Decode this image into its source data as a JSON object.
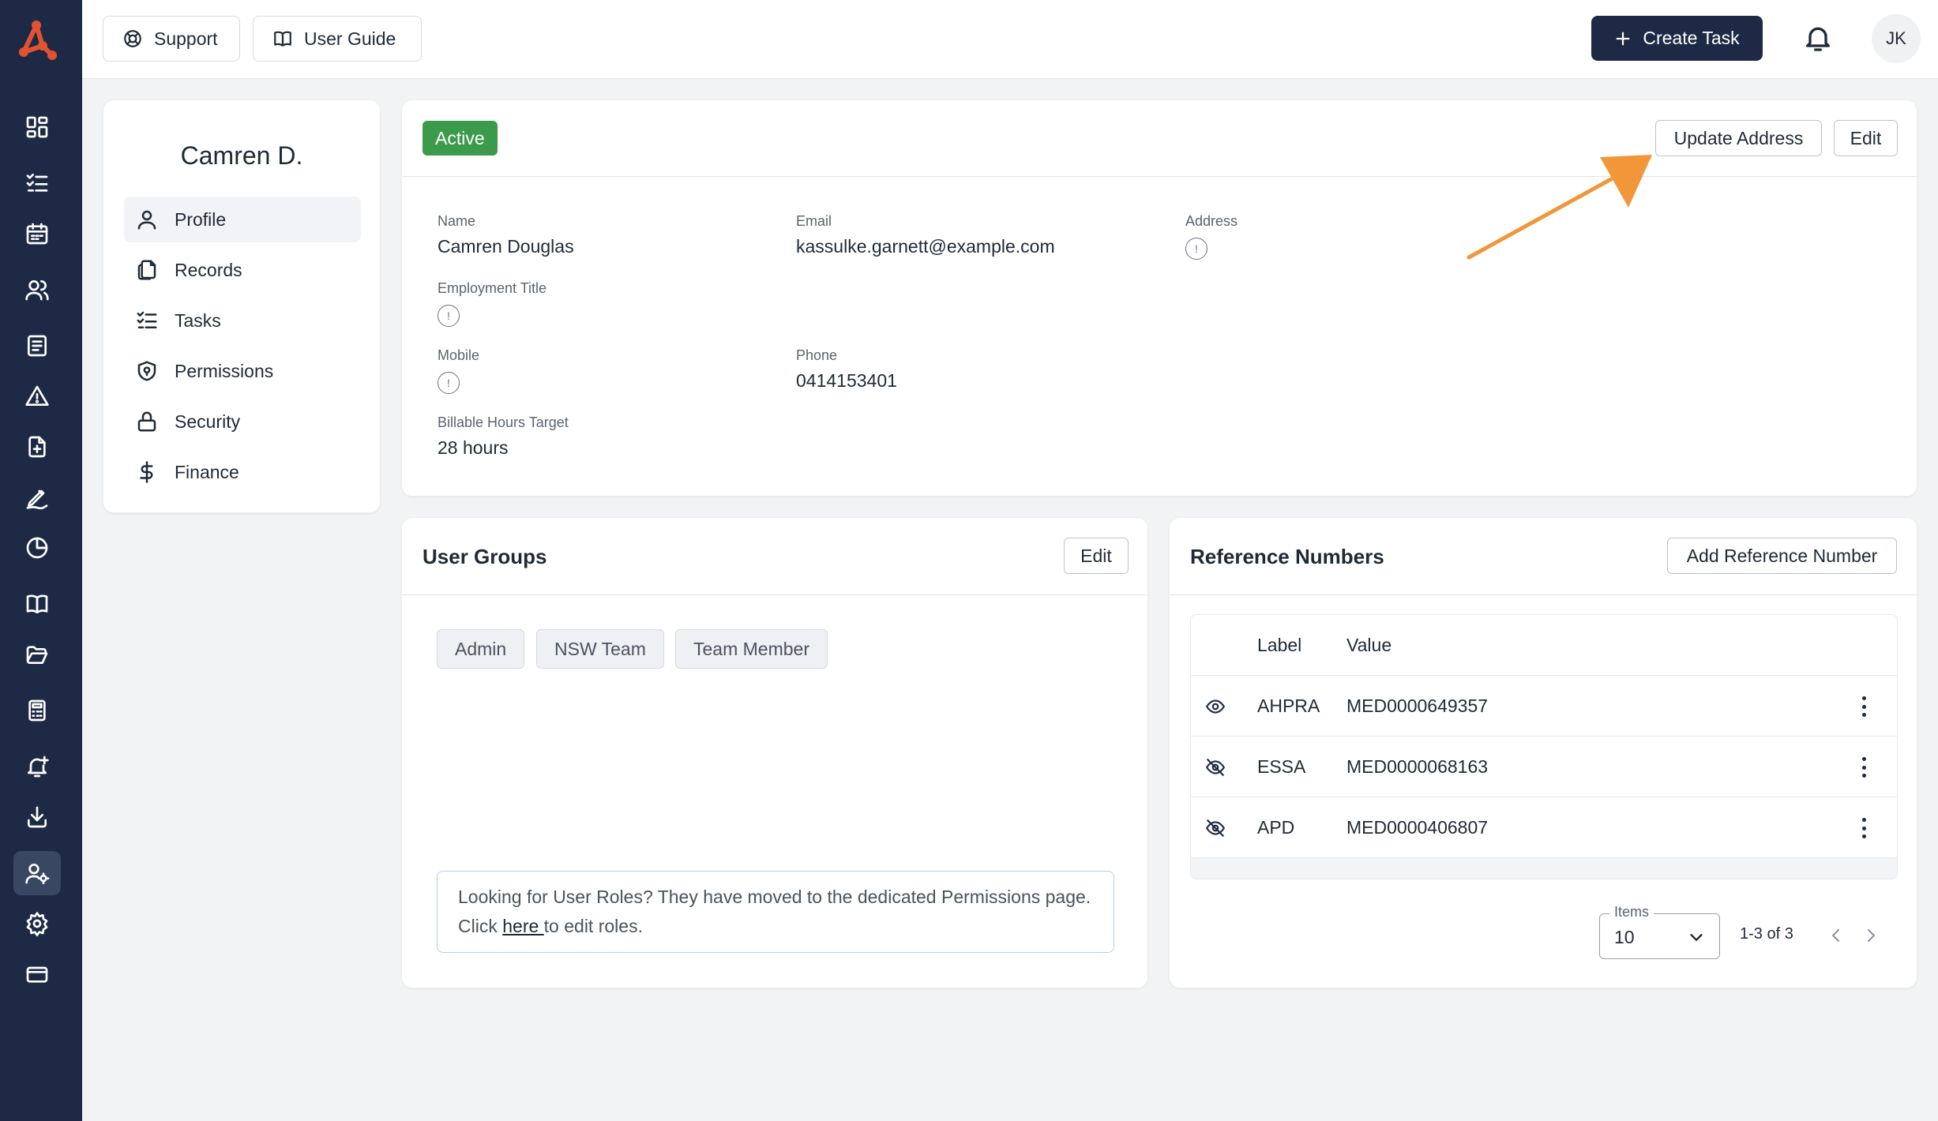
{
  "topbar": {
    "support_label": "Support",
    "user_guide_label": "User Guide",
    "create_task_label": "Create Task",
    "avatar_initials": "JK"
  },
  "sidebar": {
    "icons": [
      "dashboard-icon",
      "task-list-icon",
      "calendar-icon",
      "users-icon",
      "form-icon",
      "warning-icon",
      "document-add-icon",
      "signature-icon",
      "pie-chart-icon",
      "book-icon",
      "folder-open-icon",
      "calculator-icon",
      "bell-plus-icon",
      "download-icon",
      "user-settings-icon",
      "gear-icon",
      "credit-card-icon"
    ],
    "active_icon": "user-settings-icon"
  },
  "profile": {
    "name": "Camren D.",
    "nav": [
      {
        "label": "Profile",
        "icon": "user-icon",
        "active": true
      },
      {
        "label": "Records",
        "icon": "records-icon",
        "active": false
      },
      {
        "label": "Tasks",
        "icon": "task-list-icon",
        "active": false
      },
      {
        "label": "Permissions",
        "icon": "shield-icon",
        "active": false
      },
      {
        "label": "Security",
        "icon": "lock-icon",
        "active": false
      },
      {
        "label": "Finance",
        "icon": "dollar-icon",
        "active": false
      }
    ]
  },
  "details": {
    "status": "Active",
    "update_address_label": "Update Address",
    "edit_label": "Edit",
    "fields": {
      "name_label": "Name",
      "name_value": "Camren Douglas",
      "email_label": "Email",
      "email_value": "kassulke.garnett@example.com",
      "address_label": "Address",
      "employment_title_label": "Employment Title",
      "mobile_label": "Mobile",
      "phone_label": "Phone",
      "phone_value": "0414153401",
      "billable_label": "Billable Hours Target",
      "billable_value": "28 hours"
    }
  },
  "user_groups": {
    "title": "User Groups",
    "edit_label": "Edit",
    "groups": [
      "Admin",
      "NSW Team",
      "Team Member"
    ],
    "notice_before": "Looking for User Roles? They have moved to the dedicated Permissions page. Click ",
    "notice_link": "here ",
    "notice_after": "to edit roles."
  },
  "reference_numbers": {
    "title": "Reference Numbers",
    "add_label": "Add Reference Number",
    "columns": {
      "label": "Label",
      "value": "Value"
    },
    "rows": [
      {
        "label": "AHPRA",
        "value": "MED0000649357",
        "visibility_icon": "eye-icon"
      },
      {
        "label": "ESSA",
        "value": "MED0000068163",
        "visibility_icon": "eye-off-icon"
      },
      {
        "label": "APD",
        "value": "MED0000406807",
        "visibility_icon": "eye-off-icon"
      }
    ],
    "items_caption": "Items",
    "items_value": "10",
    "page_info": "1-3 of 3"
  },
  "colors": {
    "sidebar_bg": "#1e2a45",
    "active_badge": "#3b9a4b",
    "annotation_arrow": "#f2963a"
  }
}
